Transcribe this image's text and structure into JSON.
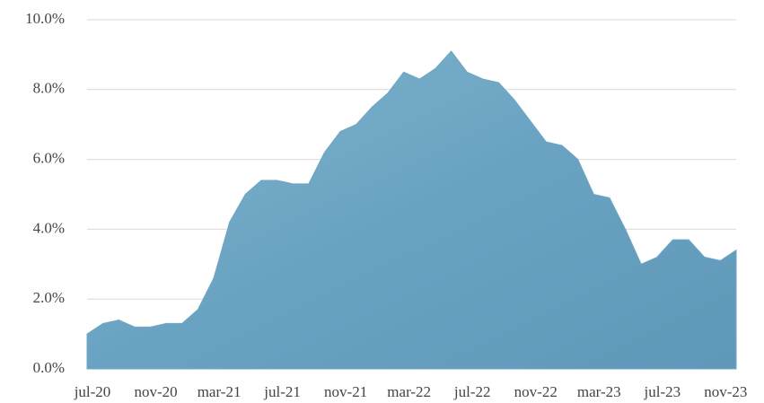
{
  "chart_data": {
    "type": "area",
    "categories": [
      "jul-20",
      null,
      null,
      null,
      "nov-20",
      null,
      null,
      null,
      "mar-21",
      null,
      null,
      null,
      "jul-21",
      null,
      null,
      null,
      "nov-21",
      null,
      null,
      null,
      "mar-22",
      null,
      null,
      null,
      "jul-22",
      null,
      null,
      null,
      "nov-22",
      null,
      null,
      null,
      "mar-23",
      null,
      null,
      null,
      "jul-23",
      null,
      null,
      null,
      "nov-23",
      null
    ],
    "values": [
      1.0,
      1.3,
      1.4,
      1.2,
      1.2,
      1.3,
      1.3,
      1.7,
      2.6,
      4.2,
      5.0,
      5.4,
      5.4,
      5.3,
      5.3,
      6.2,
      6.8,
      7.0,
      7.5,
      7.9,
      8.5,
      8.3,
      8.6,
      9.1,
      8.5,
      8.3,
      8.2,
      7.7,
      7.1,
      6.5,
      6.4,
      6.0,
      5.0,
      4.9,
      4.0,
      3.0,
      3.2,
      3.7,
      3.7,
      3.2,
      3.1,
      3.4
    ],
    "color": "#6fa6c4",
    "ylim": [
      0,
      10
    ],
    "yticks": [
      {
        "value": 0,
        "label": "0.0%"
      },
      {
        "value": 2,
        "label": "2.0%"
      },
      {
        "value": 4,
        "label": "4.0%"
      },
      {
        "value": 6,
        "label": "6.0%"
      },
      {
        "value": 8,
        "label": "8.0%"
      },
      {
        "value": 10,
        "label": "10.0%"
      }
    ],
    "grid": true
  }
}
